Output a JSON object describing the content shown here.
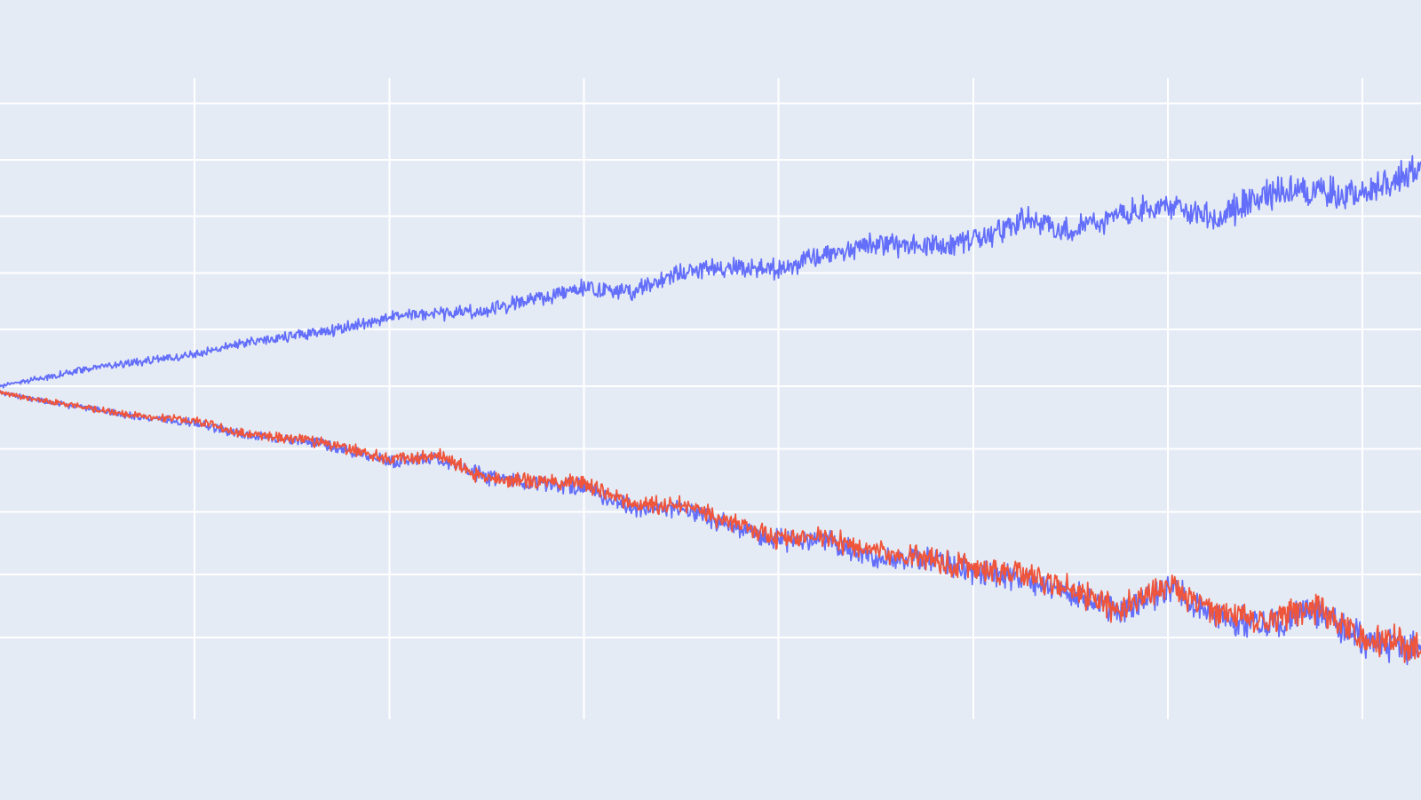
{
  "chart_data": {
    "type": "line",
    "title": "",
    "xlabel": "",
    "ylabel": "",
    "grid": true,
    "legend": "none",
    "xlim": [
      0,
      7.3
    ],
    "ylim": [
      -5.3,
      4.9
    ],
    "background_color": "#e5ecf6",
    "grid_color": "#ffffff",
    "series": [
      {
        "color": "#636efa",
        "x": [
          0,
          0.25,
          0.5,
          0.75,
          1.0,
          1.25,
          1.5,
          1.75,
          2.0,
          2.25,
          2.5,
          2.75,
          3.0,
          3.25,
          3.5,
          3.75,
          4.0,
          4.25,
          4.5,
          4.75,
          5.0,
          5.25,
          5.5,
          5.75,
          6.0,
          6.25,
          6.5,
          6.75,
          7.0,
          7.3
        ],
        "y": [
          0,
          0.15,
          0.3,
          0.4,
          0.5,
          0.7,
          0.8,
          0.9,
          1.1,
          1.15,
          1.2,
          1.4,
          1.55,
          1.5,
          1.8,
          1.9,
          1.85,
          2.1,
          2.25,
          2.2,
          2.3,
          2.65,
          2.45,
          2.75,
          2.9,
          2.65,
          3.05,
          3.1,
          3.05,
          3.5
        ]
      },
      {
        "color": "#636efa",
        "x": [
          0,
          0.25,
          0.5,
          0.75,
          1.0,
          1.25,
          1.5,
          1.75,
          2.0,
          2.25,
          2.5,
          2.75,
          3.0,
          3.25,
          3.5,
          3.75,
          4.0,
          4.25,
          4.5,
          4.75,
          5.0,
          5.25,
          5.5,
          5.75,
          6.0,
          6.25,
          6.5,
          6.75,
          7.0,
          7.3
        ],
        "y": [
          -0.1,
          -0.25,
          -0.38,
          -0.5,
          -0.58,
          -0.78,
          -0.85,
          -0.98,
          -1.2,
          -1.15,
          -1.45,
          -1.55,
          -1.6,
          -1.95,
          -1.95,
          -2.2,
          -2.45,
          -2.45,
          -2.75,
          -2.75,
          -2.95,
          -3.05,
          -3.3,
          -3.6,
          -3.2,
          -3.7,
          -3.8,
          -3.55,
          -4.05,
          -4.2
        ]
      },
      {
        "color": "#ef553b",
        "x": [
          0,
          0.25,
          0.5,
          0.75,
          1.0,
          1.25,
          1.5,
          1.75,
          2.0,
          2.25,
          2.5,
          2.75,
          3.0,
          3.25,
          3.5,
          3.75,
          4.0,
          4.25,
          4.5,
          4.75,
          5.0,
          5.25,
          5.5,
          5.75,
          6.0,
          6.25,
          6.5,
          6.75,
          7.0,
          7.3
        ],
        "y": [
          -0.1,
          -0.25,
          -0.37,
          -0.48,
          -0.55,
          -0.75,
          -0.82,
          -0.95,
          -1.18,
          -1.1,
          -1.5,
          -1.5,
          -1.55,
          -1.9,
          -1.9,
          -2.15,
          -2.45,
          -2.4,
          -2.65,
          -2.75,
          -2.9,
          -3.0,
          -3.25,
          -3.55,
          -3.15,
          -3.65,
          -3.75,
          -3.5,
          -4.0,
          -4.15
        ]
      }
    ]
  }
}
